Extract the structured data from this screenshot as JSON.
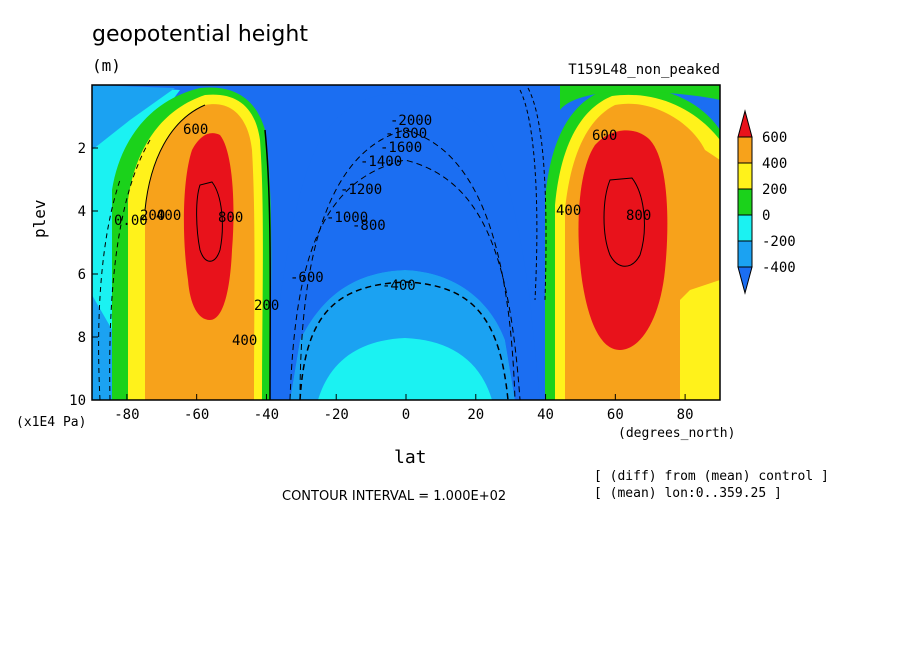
{
  "header": {
    "title": "geopotential height",
    "units": "(m)",
    "run_label": "T159L48_non_peaked"
  },
  "axes": {
    "x_label": "lat",
    "x_units": "(degrees_north)",
    "y_label": "plev",
    "y_units": "(x1E4 Pa)"
  },
  "footer": {
    "contour_interval": "CONTOUR INTERVAL = 1.000E+02",
    "note_diff": "[ (diff) from (mean) control ]",
    "note_mean": "[ (mean) lon:0..359.25 ]"
  },
  "chart_data": {
    "type": "heatmap",
    "subtype": "filled-contour",
    "xlim": [
      -90,
      90
    ],
    "ylim": [
      10,
      0
    ],
    "x_ticks": [
      "-80",
      "-60",
      "-40",
      "-20",
      "0",
      "20",
      "40",
      "60",
      "80"
    ],
    "x_tick_values": [
      -80,
      -60,
      -40,
      -20,
      0,
      20,
      40,
      60,
      80
    ],
    "y_ticks": [
      "2",
      "4",
      "6",
      "8",
      "10"
    ],
    "y_tick_values": [
      2,
      4,
      6,
      8,
      10
    ],
    "colorbar": {
      "labels": [
        "600",
        "400",
        "200",
        "0",
        "-200",
        "-400"
      ],
      "level_values": [
        600,
        400,
        200,
        0,
        -200,
        -400
      ],
      "colors": [
        "#e8121b",
        "#f7a21b",
        "#fff21b",
        "#1bd21b",
        "#1bf2f2",
        "#1ba2f2",
        "#1b6ef2"
      ]
    },
    "fill_colors": {
      "below_-400": "#1b6ef2",
      "-400_-200": "#1ba2f2",
      "-200_0": "#1bf2f2",
      "0_200": "#1bd21b",
      "200_400": "#fff21b",
      "400_600": "#f7a21b",
      "above_600": "#e8121b"
    },
    "contour_labels": [
      "-2000",
      "-1800",
      "-1600",
      "-1400",
      "-1200",
      "-1000",
      "-800",
      "-600",
      "-400",
      "0.00",
      "200",
      "400",
      "600",
      "800"
    ],
    "extrema": [
      {
        "lat": -57,
        "plev": 3.0,
        "sign": "max",
        "approx": 900
      },
      {
        "lat": 58,
        "plev": 3.0,
        "sign": "max",
        "approx": 900
      },
      {
        "lat": 0,
        "plev": 1.0,
        "sign": "min",
        "approx": -2000
      }
    ]
  }
}
